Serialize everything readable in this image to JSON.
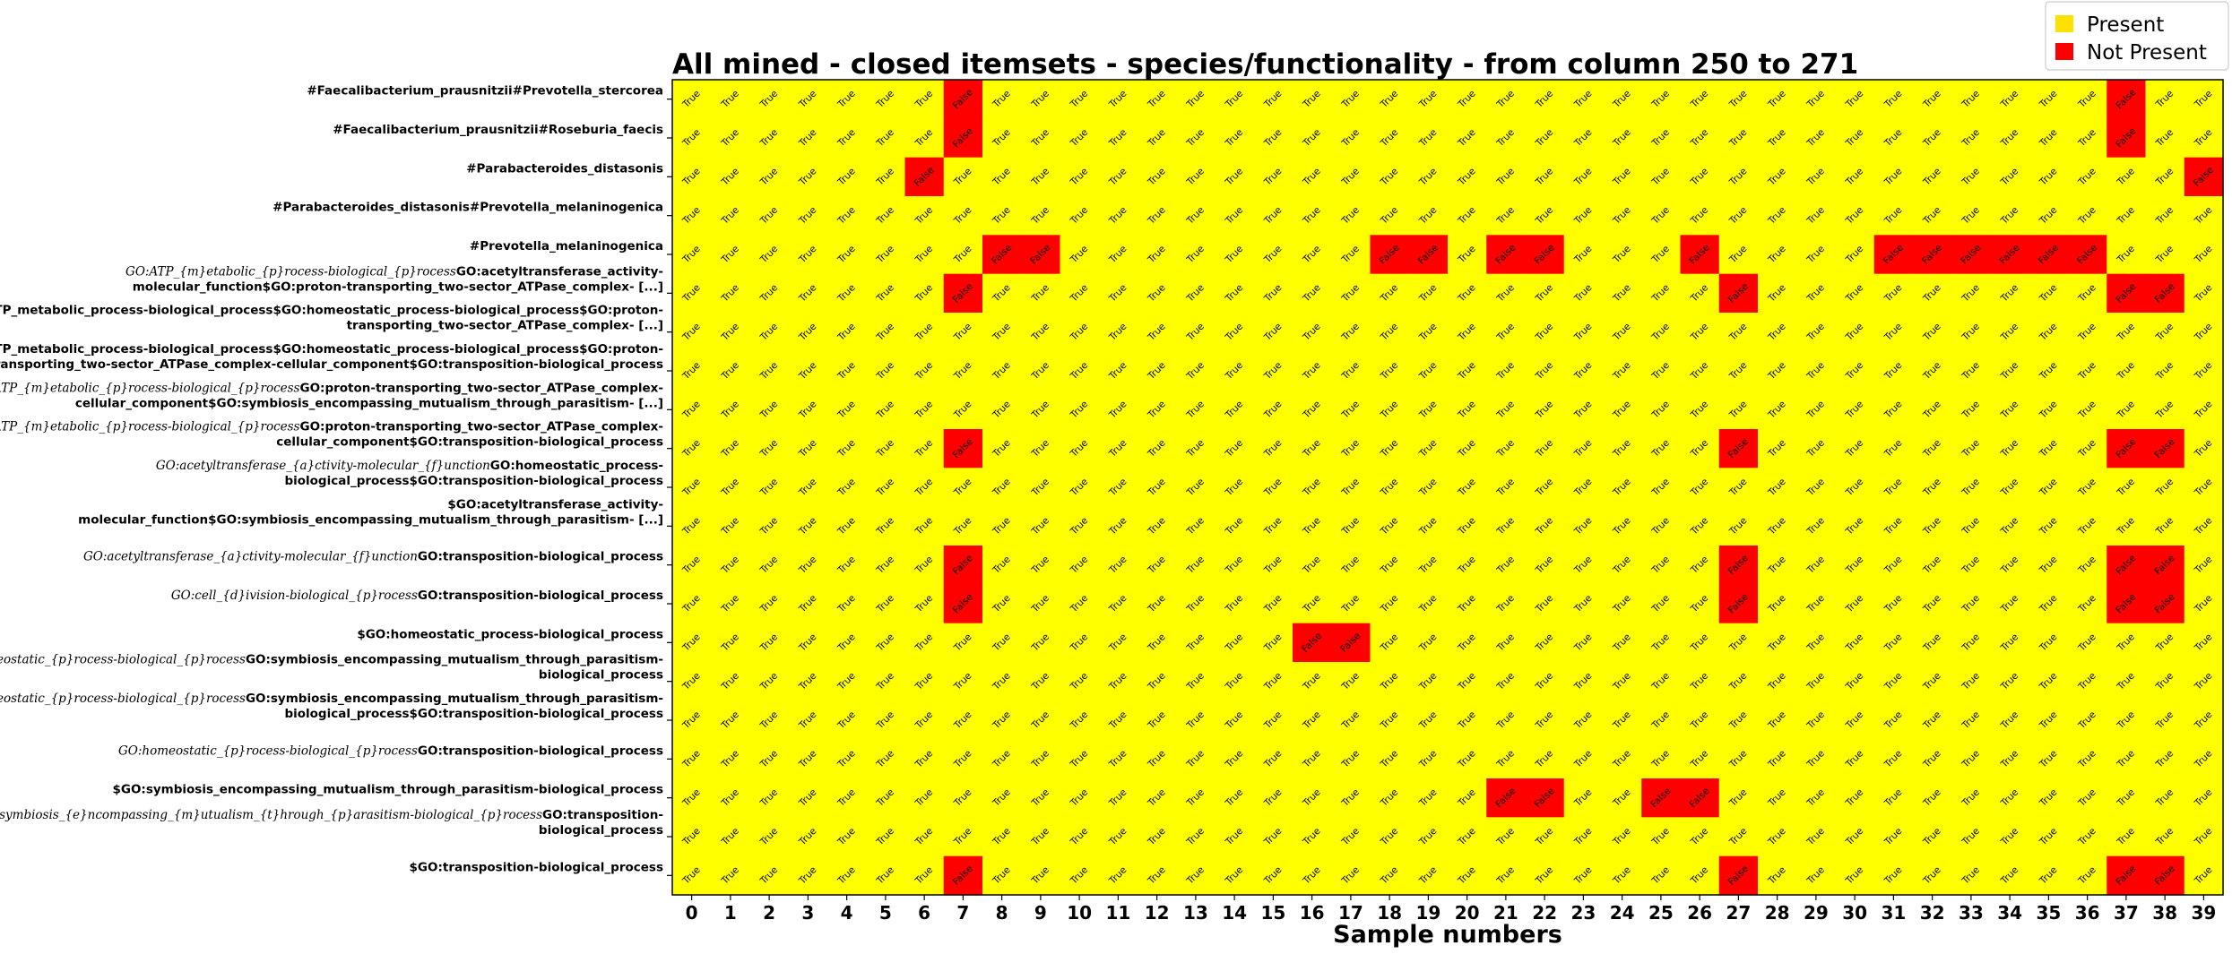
{
  "chart_data": {
    "type": "heatmap",
    "title": "All mined - closed itemsets - species/functionality - from column 250 to 271",
    "xlabel": "Sample numbers",
    "ylabel": "",
    "x": [
      0,
      1,
      2,
      3,
      4,
      5,
      6,
      7,
      8,
      9,
      10,
      11,
      12,
      13,
      14,
      15,
      16,
      17,
      18,
      19,
      20,
      21,
      22,
      23,
      24,
      25,
      26,
      27,
      28,
      29,
      30,
      31,
      32,
      33,
      34,
      35,
      36,
      37,
      38,
      39
    ],
    "rows": [
      {
        "parts": [
          {
            "t": "#Faecalibacterium_prausnitzii#Prevotella_stercorea",
            "m": false
          }
        ]
      },
      {
        "parts": [
          {
            "t": "#Faecalibacterium_prausnitzii#Roseburia_faecis",
            "m": false
          }
        ]
      },
      {
        "parts": [
          {
            "t": "#Parabacteroides_distasonis",
            "m": false
          }
        ]
      },
      {
        "parts": [
          {
            "t": "#Parabacteroides_distasonis#Prevotella_melaninogenica",
            "m": false
          }
        ]
      },
      {
        "parts": [
          {
            "t": "#Prevotella_melaninogenica",
            "m": false
          }
        ]
      },
      {
        "parts": [
          {
            "t": "GO:ATP_{m}etabolic_{p}rocess-biological_{p}rocess",
            "m": true
          },
          {
            "t": "GO:acetyltransferase_activity-",
            "m": false
          }
        ],
        "line2": "molecular_function$GO:proton-transporting_two-sector_ATPase_complex- [...]"
      },
      {
        "parts": [
          {
            "t": "$GO:ATP_metabolic_process-biological_process$GO:homeostatic_process-biological_process$GO:proton-",
            "m": false
          }
        ],
        "line2": "transporting_two-sector_ATPase_complex- [...]"
      },
      {
        "parts": [
          {
            "t": "$GO:ATP_metabolic_process-biological_process$GO:homeostatic_process-biological_process$GO:proton-",
            "m": false
          }
        ],
        "line2": "transporting_two-sector_ATPase_complex-cellular_component$GO:transposition-biological_process"
      },
      {
        "parts": [
          {
            "t": "GO:ATP_{m}etabolic_{p}rocess-biological_{p}rocess",
            "m": true
          },
          {
            "t": "GO:proton-transporting_two-sector_ATPase_complex-",
            "m": false
          }
        ],
        "line2": "cellular_component$GO:symbiosis_encompassing_mutualism_through_parasitism- [...]"
      },
      {
        "parts": [
          {
            "t": "GO:ATP_{m}etabolic_{p}rocess-biological_{p}rocess",
            "m": true
          },
          {
            "t": "GO:proton-transporting_two-sector_ATPase_complex-",
            "m": false
          }
        ],
        "line2": "cellular_component$GO:transposition-biological_process"
      },
      {
        "parts": [
          {
            "t": "GO:acetyltransferase_{a}ctivity-molecular_{f}unction",
            "m": true
          },
          {
            "t": "GO:homeostatic_process-",
            "m": false
          }
        ],
        "line2": "biological_process$GO:transposition-biological_process"
      },
      {
        "parts": [
          {
            "t": "$GO:acetyltransferase_activity-",
            "m": false
          }
        ],
        "line2": "molecular_function$GO:symbiosis_encompassing_mutualism_through_parasitism- [...]"
      },
      {
        "parts": [
          {
            "t": "GO:acetyltransferase_{a}ctivity-molecular_{f}unction",
            "m": true
          },
          {
            "t": "GO:transposition-biological_process",
            "m": false
          }
        ]
      },
      {
        "parts": [
          {
            "t": "GO:cell_{d}ivision-biological_{p}rocess",
            "m": true
          },
          {
            "t": "GO:transposition-biological_process",
            "m": false
          }
        ]
      },
      {
        "parts": [
          {
            "t": "$GO:homeostatic_process-biological_process",
            "m": false
          }
        ]
      },
      {
        "parts": [
          {
            "t": "GO:homeostatic_{p}rocess-biological_{p}rocess",
            "m": true
          },
          {
            "t": "GO:symbiosis_encompassing_mutualism_through_parasitism-",
            "m": false
          }
        ],
        "line2": "biological_process"
      },
      {
        "parts": [
          {
            "t": "GO:homeostatic_{p}rocess-biological_{p}rocess",
            "m": true
          },
          {
            "t": "GO:symbiosis_encompassing_mutualism_through_parasitism-",
            "m": false
          }
        ],
        "line2": "biological_process$GO:transposition-biological_process"
      },
      {
        "parts": [
          {
            "t": "GO:homeostatic_{p}rocess-biological_{p}rocess",
            "m": true
          },
          {
            "t": "GO:transposition-biological_process",
            "m": false
          }
        ]
      },
      {
        "parts": [
          {
            "t": "$GO:symbiosis_encompassing_mutualism_through_parasitism-biological_process",
            "m": false
          }
        ]
      },
      {
        "parts": [
          {
            "t": "GO:symbiosis_{e}ncompassing_{m}utualism_{t}hrough_{p}arasitism-biological_{p}rocess",
            "m": true
          },
          {
            "t": "GO:transposition-",
            "m": false
          }
        ],
        "line2": "biological_process"
      },
      {
        "parts": [
          {
            "t": "$GO:transposition-biological_process",
            "m": false
          }
        ]
      }
    ],
    "false_cells": [
      [
        7,
        37
      ],
      [
        7,
        37
      ],
      [
        6,
        39
      ],
      [],
      [
        8,
        9,
        18,
        19,
        21,
        22,
        26,
        31,
        32,
        33,
        34,
        35,
        36
      ],
      [
        7,
        27,
        37,
        38
      ],
      [],
      [],
      [],
      [
        7,
        27,
        37,
        38
      ],
      [],
      [],
      [
        7,
        27,
        37,
        38
      ],
      [
        7,
        27,
        37,
        38
      ],
      [
        16,
        17
      ],
      [],
      [],
      [],
      [
        21,
        22,
        25,
        26
      ],
      [],
      [
        7,
        27,
        37,
        38
      ]
    ],
    "true_text": "True",
    "false_text": "False",
    "legend": [
      {
        "label": "Present",
        "color": "#FFFF00",
        "swatch": "#FFE100"
      },
      {
        "label": "Not Present",
        "color": "#FF0000",
        "swatch": "#FF0000"
      }
    ],
    "legend_position": "top-right",
    "grid": false
  }
}
